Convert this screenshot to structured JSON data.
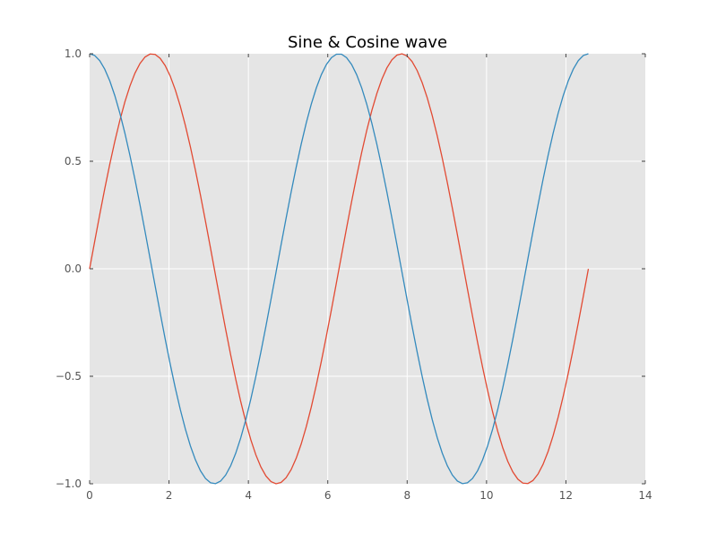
{
  "chart_data": {
    "type": "line",
    "title": "Sine & Cosine wave",
    "xlabel": "",
    "ylabel": "",
    "xlim": [
      0,
      14
    ],
    "ylim": [
      -1.0,
      1.0
    ],
    "grid": true,
    "x_ticks": [
      0,
      2,
      4,
      6,
      8,
      10,
      12,
      14
    ],
    "x_tick_labels": [
      "0",
      "2",
      "4",
      "6",
      "8",
      "10",
      "12",
      "14"
    ],
    "y_ticks": [
      -1.0,
      -0.5,
      0.0,
      0.5,
      1.0
    ],
    "y_tick_labels": [
      "−1.0",
      "−0.5",
      "0.0",
      "0.5",
      "1.0"
    ],
    "x_range": [
      0,
      12.566
    ],
    "sample_count": 100,
    "series": [
      {
        "function": "sin",
        "color": "#E24A33"
      },
      {
        "function": "cos",
        "color": "#348ABD"
      }
    ],
    "colors": {
      "plot_background": "#E5E5E5",
      "grid": "#FFFFFF",
      "tick_text": "#555555"
    }
  }
}
